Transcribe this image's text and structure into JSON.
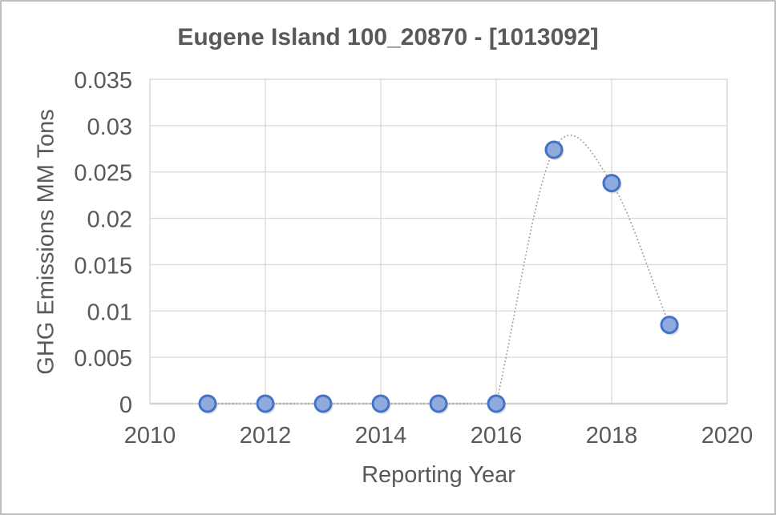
{
  "figure": {
    "background": "#ffffff",
    "frame_border_color": "#bfbfbf"
  },
  "chart_data": {
    "type": "scatter",
    "title": "Eugene Island 100_20870 - [1013092]",
    "xlabel": "Reporting Year",
    "ylabel": "GHG Emissions MM Tons",
    "xlim": [
      2010,
      2020
    ],
    "ylim": [
      0,
      0.035
    ],
    "x_ticks": [
      2010,
      2012,
      2014,
      2016,
      2018,
      2020
    ],
    "x_tick_labels": [
      "2010",
      "2012",
      "2014",
      "2016",
      "2018",
      "2020"
    ],
    "y_ticks": [
      0,
      0.005,
      0.01,
      0.015,
      0.02,
      0.025,
      0.03,
      0.035
    ],
    "y_tick_labels": [
      "0",
      "0.005",
      "0.01",
      "0.015",
      "0.02",
      "0.025",
      "0.03",
      "0.035"
    ],
    "grid": true,
    "legend": "none",
    "series": [
      {
        "name": "GHG Emissions MM Tons",
        "x": [
          2011,
          2012,
          2013,
          2014,
          2015,
          2016,
          2017,
          2018,
          2019
        ],
        "y": [
          0,
          0,
          0,
          0,
          0,
          0,
          0.0274,
          0.0238,
          0.0085
        ],
        "marker": "circle",
        "marker_fill": "#8faadc",
        "marker_stroke": "#4472c4",
        "line_style": "dotted-smooth",
        "line_color": "#999999"
      }
    ],
    "colors": {
      "gridline": "#d9d9d9",
      "axis_line": "#d2d2d2",
      "text": "#595959",
      "marker_shadow": "#b8bdc9"
    }
  }
}
